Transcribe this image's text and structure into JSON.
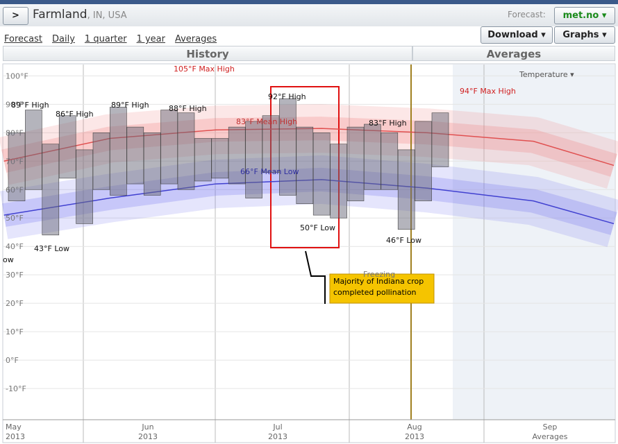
{
  "header": {
    "button": ">",
    "title": "Farmland",
    "subtitle": ", IN, USA",
    "forecast_label": "Forecast:",
    "forecast_source": "met.no ▾",
    "download": "Download ▾",
    "graphs": "Graphs ▾"
  },
  "nav": [
    "Forecast",
    "Daily",
    "1 quarter",
    "1 year",
    "Averages"
  ],
  "panels": {
    "history": "History",
    "averages": "Averages",
    "selector": "Temperature ▾"
  },
  "chart_data": {
    "type": "range",
    "ylim": [
      -20,
      104
    ],
    "yticks": [
      {
        "value": -10,
        "label": "-10°F"
      },
      {
        "value": 0,
        "label": "0°F"
      },
      {
        "value": 10,
        "label": "10°F"
      },
      {
        "value": 20,
        "label": "20°F"
      },
      {
        "value": 30,
        "label": "30°F"
      },
      {
        "value": 40,
        "label": "40°F"
      },
      {
        "value": 50,
        "label": "50°F"
      },
      {
        "value": 60,
        "label": "60°F"
      },
      {
        "value": 70,
        "label": "70°F"
      },
      {
        "value": 80,
        "label": "80°F"
      },
      {
        "value": 90,
        "label": "90°F"
      },
      {
        "value": 100,
        "label": "100°F"
      }
    ],
    "x_labels": [
      {
        "month": "May",
        "year": "2013"
      },
      {
        "month": "Jun",
        "year": "2013"
      },
      {
        "month": "Jul",
        "year": "2013"
      },
      {
        "month": "Aug",
        "year": "2013"
      },
      {
        "month": "Sep",
        "year": "Averages"
      }
    ],
    "x": [
      0,
      4,
      8,
      12,
      16,
      20,
      24,
      28,
      32,
      36,
      40,
      44,
      48,
      52,
      56,
      60,
      64,
      68,
      72,
      76,
      80,
      84,
      88,
      92,
      96,
      100
    ],
    "series": [
      {
        "name": "High",
        "color": "#6a6a7a",
        "values": [
          80,
          88,
          76,
          86,
          74,
          80,
          89,
          82,
          80,
          88,
          87,
          78,
          78,
          82,
          84,
          86,
          92,
          82,
          80,
          76,
          82,
          83,
          80,
          74,
          84,
          87
        ]
      },
      {
        "name": "Low",
        "color": "#6a6a7a",
        "values": [
          56,
          60,
          44,
          64,
          48,
          60,
          58,
          62,
          58,
          62,
          60,
          63,
          64,
          62,
          57,
          66,
          58,
          55,
          51,
          50,
          56,
          60,
          60,
          46,
          56,
          68
        ]
      }
    ],
    "mean_x": [
      -3,
      22,
      47,
      72,
      97,
      122,
      141
    ],
    "mean_high": {
      "color": "#e05050",
      "values": [
        70,
        78,
        81,
        81.5,
        80,
        77,
        68.5
      ]
    },
    "mean_low": {
      "color": "#4040d0",
      "values": [
        51,
        57,
        62,
        63.5,
        60.5,
        56,
        48
      ]
    },
    "annotations": [
      "105°F Max High",
      "94°F Max High",
      "83°F Mean High",
      "66°F Mean Low",
      "89°F High",
      "86°F High",
      "89°F High",
      "88°F High",
      "92°F High",
      "83°F High",
      "43°F Low",
      "50°F Low",
      "46°F Low",
      "ow",
      "Freezing"
    ],
    "callout": [
      "Majority of Indiana crop",
      "completed pollination"
    ]
  }
}
